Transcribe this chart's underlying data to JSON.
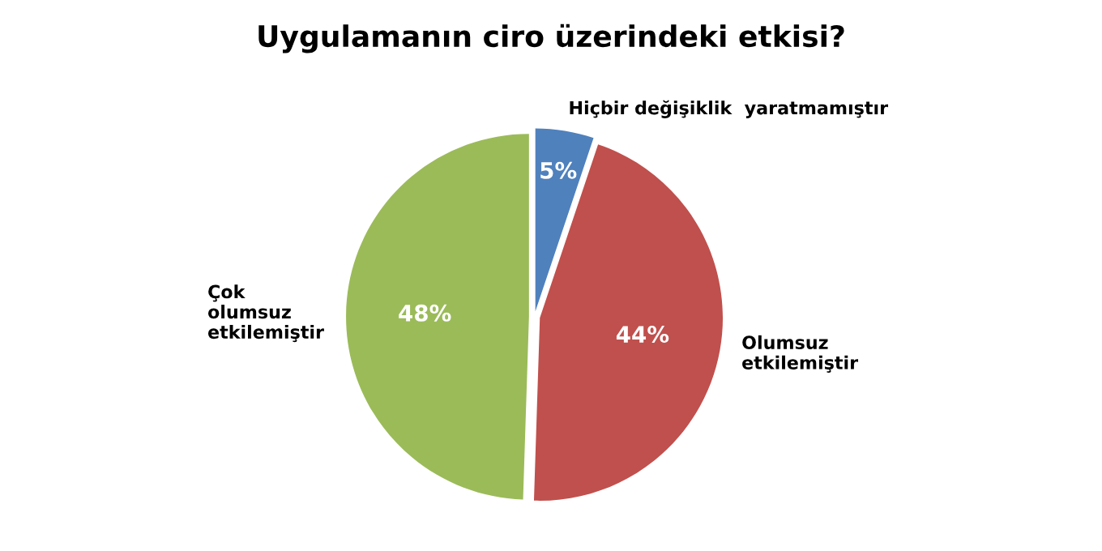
{
  "chart_data": {
    "type": "pie",
    "title": "Uygulamanın ciro üzerindeki etkisi?",
    "categories": [
      "Hiçbir değişiklik  yaratmamıştır",
      "Olumsuz\netkilemiştir",
      "Çok\nolumsuz\netkilemiştir"
    ],
    "values": [
      5,
      44,
      48
    ],
    "value_labels": [
      "5%",
      "44%",
      "48%"
    ],
    "colors": [
      "#4f81bd",
      "#c0504d",
      "#9bbb59"
    ]
  }
}
